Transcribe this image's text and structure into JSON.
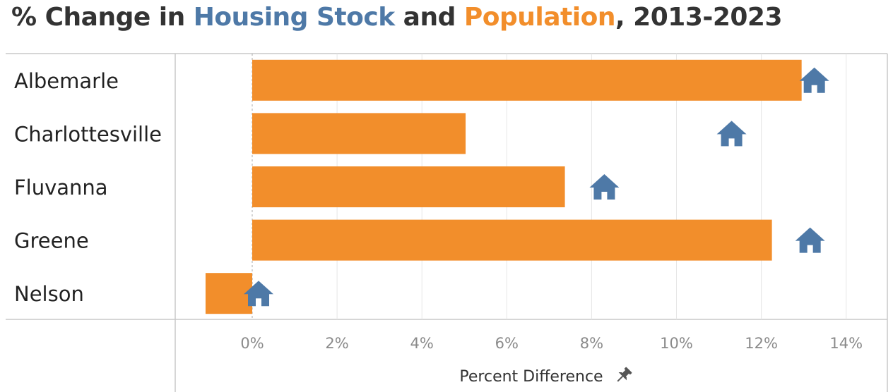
{
  "title": {
    "prefix": "% Change in ",
    "housing": "Housing Stock",
    "middle": " and ",
    "population": "Population",
    "suffix": ", 2013-2023"
  },
  "colors": {
    "population": "#f28e2b",
    "housing": "#4e79a7",
    "text": "#333333",
    "tick": "#8a8a8a",
    "grid": "#e6e6e6",
    "border": "#c8c8c8"
  },
  "chart_data": {
    "type": "bar",
    "orientation": "horizontal",
    "title": "% Change in Housing Stock and Population, 2013-2023",
    "xlabel": "Percent Difference",
    "ylabel": "",
    "categories": [
      "Albemarle",
      "Charlottesville",
      "Fluvanna",
      "Greene",
      "Nelson"
    ],
    "series": [
      {
        "name": "Population",
        "mark": "bar",
        "values": [
          12.95,
          5.03,
          7.37,
          12.25,
          -1.1
        ]
      },
      {
        "name": "Housing Stock",
        "mark": "house-icon",
        "values": [
          13.25,
          11.3,
          8.3,
          13.15,
          0.15
        ]
      }
    ],
    "xlim": [
      -1.85,
      15
    ],
    "xticks": [
      0,
      2,
      4,
      6,
      8,
      10,
      12,
      14
    ],
    "xtick_labels": [
      "0%",
      "2%",
      "4%",
      "6%",
      "8%",
      "10%",
      "12%",
      "14%"
    ],
    "grid": true,
    "zero_line": "dashed",
    "axis_icon": "pin-icon"
  }
}
